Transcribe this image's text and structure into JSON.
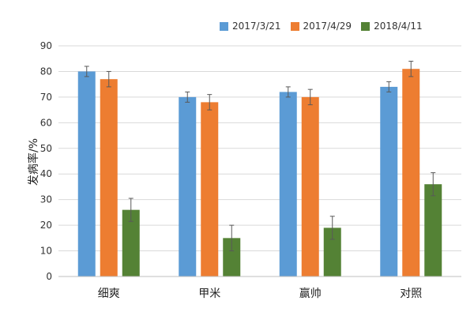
{
  "chart_data": {
    "type": "bar",
    "title": "",
    "xlabel": "",
    "ylabel": "发病率/%",
    "ylim": [
      0,
      90
    ],
    "yticks": [
      0,
      10,
      20,
      30,
      40,
      50,
      60,
      70,
      80,
      90
    ],
    "grid": true,
    "legend_position": "top-right",
    "categories": [
      "细爽",
      "甲米",
      "赢帅",
      "对照"
    ],
    "series": [
      {
        "name": "2017/3/21",
        "color": "#5b9bd5",
        "values": [
          80,
          70,
          72,
          74
        ],
        "errors": [
          2,
          2,
          2,
          2
        ]
      },
      {
        "name": "2017/4/29",
        "color": "#ed7d31",
        "values": [
          77,
          68,
          70,
          81
        ],
        "errors": [
          3,
          3,
          3,
          3
        ]
      },
      {
        "name": "2018/4/11",
        "color": "#548235",
        "values": [
          26,
          15,
          19,
          36
        ],
        "errors": [
          4.5,
          5,
          4.5,
          4.5
        ]
      }
    ]
  }
}
